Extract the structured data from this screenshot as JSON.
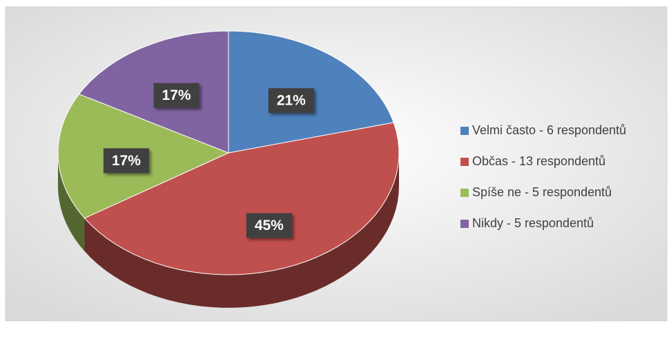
{
  "chart_data": {
    "type": "pie",
    "categories": [
      "Velmi často - 6 respondentů",
      "Občas - 13 respondentů",
      "Spíše ne - 5 respondentů",
      "Nikdy - 5 respondentů"
    ],
    "values": [
      21,
      45,
      17,
      17
    ],
    "value_labels": [
      "21%",
      "45%",
      "17%",
      "17%"
    ],
    "colors": [
      "#4f81bd",
      "#c0504d",
      "#9bbb59",
      "#8064a2"
    ],
    "legend": "right"
  }
}
